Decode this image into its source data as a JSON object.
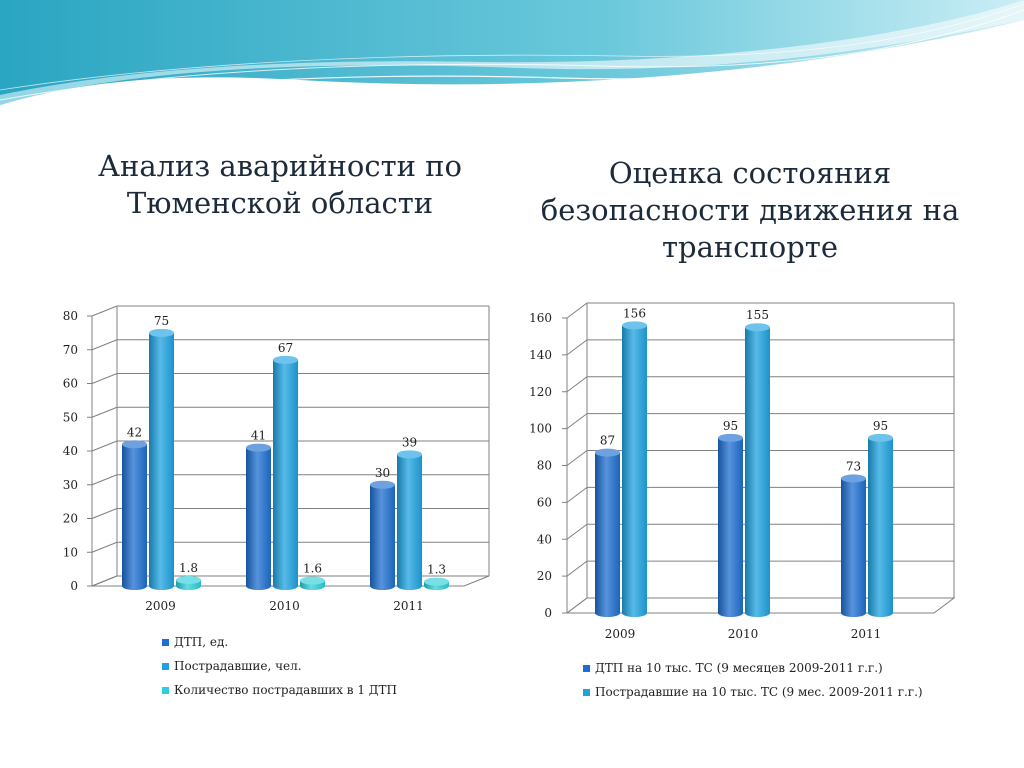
{
  "slide": {
    "title_left": "Анализ аварийности по Тюменской области",
    "title_right": "Оценка состояния безопасности движения на транспорте"
  },
  "colors": {
    "wave_dark": "#3fb0c8",
    "wave_light": "#bfe6ef",
    "series_dark": "#1f6fd0",
    "series_mid": "#1fa3e0",
    "series_cyan": "#2dd0d9",
    "grid": "#808080"
  },
  "chart_data": [
    {
      "type": "bar",
      "categories": [
        "2009",
        "2010",
        "2011"
      ],
      "series": [
        {
          "name": "ДТП, ед.",
          "values": [
            42,
            41,
            30
          ],
          "labels": [
            "42",
            "41",
            "30"
          ]
        },
        {
          "name": "Пострадавшие, чел.",
          "values": [
            75,
            67,
            39
          ],
          "labels": [
            "75",
            "67",
            "39"
          ]
        },
        {
          "name": "Количество пострадавших в 1 ДТП",
          "values": [
            1.8,
            1.6,
            1.3
          ],
          "labels": [
            "1.8",
            "1.6",
            "1.3"
          ]
        }
      ],
      "ylim": [
        0,
        80
      ],
      "yticks": [
        "0",
        "10",
        "20",
        "30",
        "40",
        "50",
        "60",
        "70",
        "80"
      ],
      "grid": true,
      "legend_position": "bottom",
      "title": "",
      "xlabel": "",
      "ylabel": ""
    },
    {
      "type": "bar",
      "categories": [
        "2009",
        "2010",
        "2011"
      ],
      "series": [
        {
          "name": "ДТП на 10 тыс. ТС (9 месяцев 2009-2011 г.г.)",
          "values": [
            87,
            95,
            73
          ],
          "labels": [
            "87",
            "95",
            "73"
          ]
        },
        {
          "name": "Пострадавшие на 10 тыс. ТС (9 мес. 2009-2011 г.г.)",
          "values": [
            156,
            155,
            95
          ],
          "labels": [
            "156",
            "155",
            "95"
          ]
        }
      ],
      "ylim": [
        0,
        160
      ],
      "yticks": [
        "0",
        "20",
        "40",
        "60",
        "80",
        "100",
        "120",
        "140",
        "160"
      ],
      "grid": true,
      "legend_position": "bottom",
      "title": "",
      "xlabel": "",
      "ylabel": ""
    }
  ]
}
